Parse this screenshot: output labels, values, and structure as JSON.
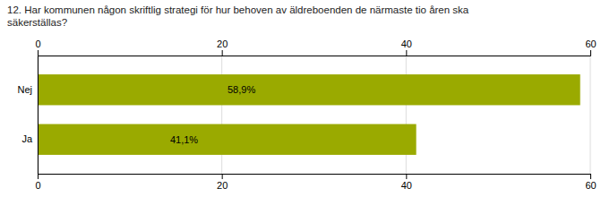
{
  "chart_data": {
    "type": "bar",
    "orientation": "horizontal",
    "title": "12. Har kommunen någon skriftlig strategi för hur behoven av äldreboenden de närmaste tio åren ska\nsäkerställas?",
    "categories": [
      "Nej",
      "Ja"
    ],
    "values": [
      58.9,
      41.1
    ],
    "value_labels": [
      "58,9%",
      "41,1%"
    ],
    "data_labels": true,
    "color": "#9aaa00",
    "xlim": [
      0,
      60
    ],
    "xticks": [
      0,
      20,
      40,
      60
    ],
    "grid": true
  }
}
